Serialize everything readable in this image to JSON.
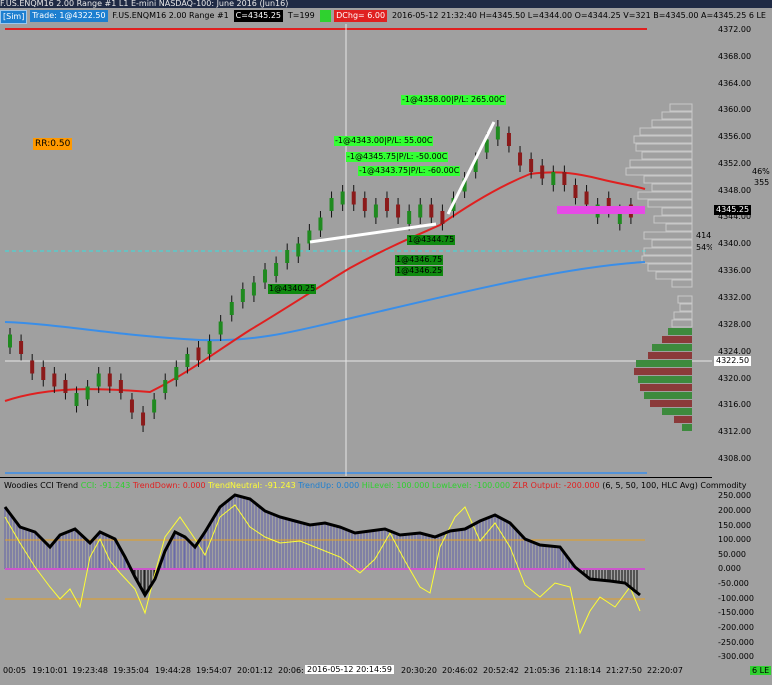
{
  "window": {
    "title": "F.US.ENQM16  2.00 Range  #1 L1  E-mini NASDAQ-100: June 2016 (Jun16)"
  },
  "toolbar": {
    "sim": "[Sim]",
    "trade": "Trade: 1@4322.50",
    "instrument": "F.US.ENQM16  2.00 Range  #1",
    "last_price": "C=4345.25",
    "tick": "T=199",
    "green_box": "...",
    "dchg": "DChg= 6.00",
    "stats": "2016-05-12 21:32:40 H=4345.50 L=4344.00 O=4344.25 V=321 B=4345.00 A=4345.25 6 LE"
  },
  "price_axis": {
    "labels": [
      "4372.00",
      "4368.00",
      "4364.00",
      "4360.00",
      "4356.00",
      "4352.00",
      "4348.00",
      "4344.00",
      "4340.00",
      "4336.00",
      "4332.00",
      "4328.00",
      "4324.00",
      "4320.00",
      "4316.00",
      "4312.00",
      "4308.00"
    ],
    "current": "4345.25",
    "crosshair": "4322.50"
  },
  "annotations": {
    "rr": "RR:0.50",
    "trades": [
      {
        "text": "-1@4358.00|P/L: 265.00C",
        "kind": "pl"
      },
      {
        "text": "-1@4343.00|P/L: 55.00C",
        "kind": "pl"
      },
      {
        "text": "-1@4345.75|P/L: -50.00C",
        "kind": "pl"
      },
      {
        "text": "-1@4343.75|P/L: -60.00C",
        "kind": "pl"
      },
      {
        "text": "1@4344.75",
        "kind": "fill"
      },
      {
        "text": "1@4346.75",
        "kind": "fill"
      },
      {
        "text": "1@4346.25",
        "kind": "fill"
      },
      {
        "text": "1@4340.25",
        "kind": "fill"
      }
    ],
    "side": {
      "pct_top": "46%",
      "val_mid": "355",
      "vol": "414",
      "pct_bot": "54%"
    }
  },
  "cci": {
    "legend": [
      {
        "text": "Woodies CCI Trend",
        "color": "#000000"
      },
      {
        "text": "CCI: -91.243",
        "color": "#2fd12f"
      },
      {
        "text": "TrendDown: 0.000",
        "color": "#e02020"
      },
      {
        "text": "TrendNeutral: -91.243",
        "color": "#ffff33"
      },
      {
        "text": "TrendUp: 0.000",
        "color": "#1d7fd0"
      },
      {
        "text": "HiLevel: 100.000",
        "color": "#2fd12f"
      },
      {
        "text": "LowLevel: -100.000",
        "color": "#2fd12f"
      },
      {
        "text": "ZLR Output: -200.000",
        "color": "#e02020"
      },
      {
        "text": "(6, 5, 50, 100, HLC Avg)",
        "color": "#000000"
      },
      {
        "text": "Commodity",
        "color": "#000000"
      }
    ],
    "axis": [
      "250.000",
      "200.000",
      "150.000",
      "100.000",
      "50.000",
      "0.000",
      "-50.000",
      "-100.000",
      "-150.000",
      "-200.000",
      "-250.000",
      "-300.000"
    ]
  },
  "time_axis": {
    "labels": [
      "00:05",
      "19:10:01",
      "19:23:48",
      "19:35:04",
      "19:44:28",
      "19:54:07",
      "20:01:12",
      "20:06:",
      "20:30:20",
      "20:46:02",
      "20:52:42",
      "21:05:36",
      "21:18:14",
      "21:27:50",
      "22:20:07"
    ],
    "crosshair": "2016-05-12  20:14:59",
    "corner": "6 LE"
  },
  "colors": {
    "background": "#a0a0a0",
    "up_bar": "#1f8a1f",
    "down_bar": "#8b1a1a",
    "ema_fast": "#e02020",
    "ema_slow": "#3a8ee8",
    "cci_line": "#000000",
    "cci_turbo": "#ffff33",
    "vp_buy": "#3d8a3d",
    "vp_sell": "#8b3a3a"
  },
  "chart_data": {
    "type": "line",
    "title": "",
    "ylim": [
      4306,
      4374
    ],
    "series": [
      {
        "name": "",
        "values": [
          4327,
          4324,
          4321,
          4320,
          4319,
          4318,
          4318,
          4319,
          4321,
          4319,
          4318,
          4315,
          4313,
          4317,
          4320,
          4322,
          4324,
          4323,
          4326,
          4329,
          4332,
          4334,
          4335,
          4337,
          4338,
          4340,
          4341,
          4343,
          4345,
          4348,
          4349,
          4347,
          4346,
          4347,
          4346,
          4345,
          4346,
          4347,
          4345,
          4344,
          4348,
          4351,
          4354,
          4357,
          4359,
          4356,
          4353,
          4352,
          4351,
          4352,
          4350,
          4348,
          4347,
          4347,
          4346,
          4346,
          4345
        ]
      }
    ]
  }
}
